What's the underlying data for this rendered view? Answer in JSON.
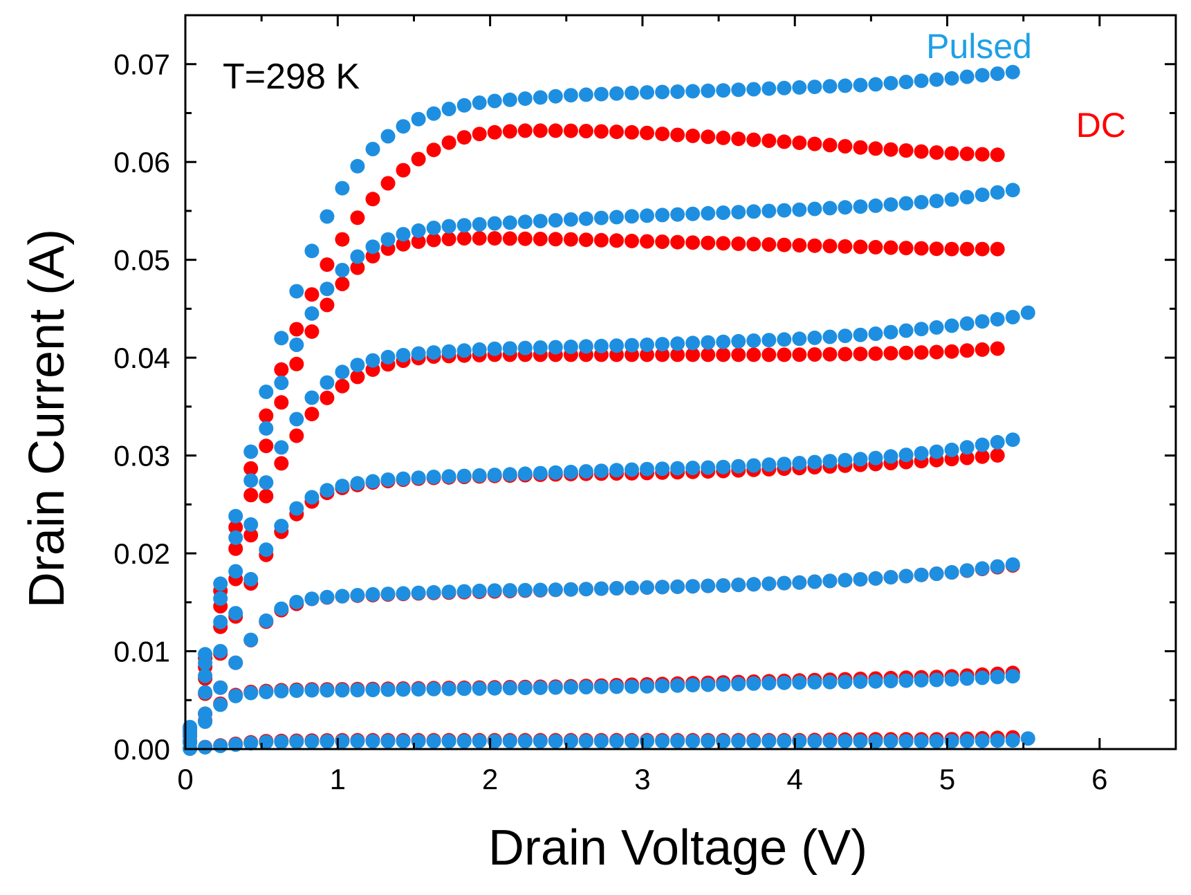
{
  "chart_data": {
    "type": "scatter",
    "title": "",
    "xlabel": "Drain Voltage (V)",
    "ylabel": "Drain Current (A)",
    "xlim": [
      0,
      6.5
    ],
    "ylim": [
      0,
      0.075
    ],
    "x_ticks": [
      0,
      1,
      2,
      3,
      4,
      5,
      6
    ],
    "y_ticks": [
      0.0,
      0.01,
      0.02,
      0.03,
      0.04,
      0.05,
      0.06,
      0.07
    ],
    "x_tick_labels": [
      "0",
      "1",
      "2",
      "3",
      "4",
      "5",
      "6"
    ],
    "y_tick_labels": [
      "0.00",
      "0.01",
      "0.02",
      "0.03",
      "0.04",
      "0.05",
      "0.06",
      "0.07"
    ],
    "grid": false,
    "annotation": "T=298 K",
    "legend_placement": "top-right",
    "series": [
      {
        "name": "Pulsed",
        "color": "#1e8fe0",
        "curves": [
          {
            "x": [
              0.0,
              0.1,
              0.2,
              0.3,
              0.4,
              0.5,
              0.6,
              0.7,
              0.8,
              0.9,
              1.0,
              1.1,
              1.2,
              1.3,
              1.4,
              1.5,
              1.6,
              1.7,
              1.8,
              1.9,
              2.0,
              2.5,
              3.0,
              3.5,
              4.0,
              4.5,
              5.0,
              5.5
            ],
            "y": [
              0.0,
              0.0075,
              0.0148,
              0.0218,
              0.0285,
              0.0348,
              0.0405,
              0.0455,
              0.0498,
              0.0535,
              0.0566,
              0.059,
              0.0609,
              0.0623,
              0.0634,
              0.0642,
              0.0648,
              0.0653,
              0.0657,
              0.066,
              0.0662,
              0.0668,
              0.0671,
              0.0673,
              0.0676,
              0.0679,
              0.0685,
              0.0693
            ]
          },
          {
            "x": [
              0.0,
              0.1,
              0.2,
              0.3,
              0.4,
              0.5,
              0.6,
              0.7,
              0.8,
              0.9,
              1.0,
              1.1,
              1.2,
              1.3,
              1.4,
              1.5,
              1.6,
              1.7,
              1.8,
              1.9,
              2.0,
              2.5,
              3.0,
              3.5,
              4.0,
              4.5,
              5.0,
              5.5
            ],
            "y": [
              0.0,
              0.0068,
              0.0135,
              0.0198,
              0.0258,
              0.0313,
              0.0362,
              0.0403,
              0.0437,
              0.0464,
              0.0485,
              0.05,
              0.0511,
              0.0519,
              0.0525,
              0.0529,
              0.0532,
              0.0534,
              0.0535,
              0.0536,
              0.0537,
              0.0541,
              0.0545,
              0.0548,
              0.0551,
              0.0555,
              0.0561,
              0.0573
            ]
          },
          {
            "x": [
              0.0,
              0.1,
              0.2,
              0.3,
              0.4,
              0.5,
              0.6,
              0.7,
              0.8,
              0.9,
              1.0,
              1.1,
              1.2,
              1.3,
              1.4,
              1.5,
              1.6,
              1.7,
              1.8,
              1.9,
              2.0,
              2.5,
              3.0,
              3.5,
              4.0,
              4.5,
              5.0,
              5.5,
              5.55
            ],
            "y": [
              0.0,
              0.0058,
              0.0114,
              0.0167,
              0.0216,
              0.0261,
              0.0299,
              0.033,
              0.0354,
              0.0371,
              0.0383,
              0.0391,
              0.0396,
              0.04,
              0.0402,
              0.0404,
              0.0405,
              0.0406,
              0.0407,
              0.0408,
              0.0409,
              0.0411,
              0.0413,
              0.0416,
              0.0419,
              0.0424,
              0.0432,
              0.0443,
              0.0448
            ]
          },
          {
            "x": [
              0.0,
              0.1,
              0.2,
              0.3,
              0.4,
              0.5,
              0.6,
              0.7,
              0.8,
              0.9,
              1.0,
              1.1,
              1.2,
              1.3,
              1.4,
              1.5,
              1.6,
              1.8,
              2.0,
              2.5,
              3.0,
              3.5,
              4.0,
              4.5,
              5.0,
              5.5
            ],
            "y": [
              0.0,
              0.0045,
              0.0088,
              0.0128,
              0.0164,
              0.0196,
              0.0222,
              0.0242,
              0.0255,
              0.0263,
              0.0268,
              0.0271,
              0.0273,
              0.0275,
              0.0276,
              0.0277,
              0.0278,
              0.0279,
              0.028,
              0.0283,
              0.0286,
              0.0288,
              0.0292,
              0.0297,
              0.0305,
              0.0318
            ]
          },
          {
            "x": [
              0.0,
              0.1,
              0.2,
              0.3,
              0.4,
              0.5,
              0.6,
              0.7,
              0.8,
              0.9,
              1.0,
              1.2,
              1.4,
              1.6,
              1.8,
              2.0,
              2.5,
              3.0,
              3.5,
              4.0,
              4.5,
              5.0,
              5.5
            ],
            "y": [
              0.0,
              0.0028,
              0.0055,
              0.0081,
              0.0105,
              0.0127,
              0.0141,
              0.0149,
              0.0153,
              0.0155,
              0.0156,
              0.0158,
              0.0159,
              0.016,
              0.0161,
              0.0162,
              0.0163,
              0.0165,
              0.0167,
              0.017,
              0.0174,
              0.018,
              0.019
            ]
          },
          {
            "x": [
              0.0,
              0.1,
              0.2,
              0.3,
              0.4,
              0.5,
              0.6,
              0.8,
              1.0,
              1.5,
              2.0,
              2.5,
              3.0,
              3.5,
              4.0,
              4.5,
              5.0,
              5.5
            ],
            "y": [
              0.0,
              0.0022,
              0.0042,
              0.0053,
              0.0057,
              0.0058,
              0.0059,
              0.006,
              0.006,
              0.0061,
              0.0062,
              0.0063,
              0.0064,
              0.0066,
              0.0068,
              0.0069,
              0.0071,
              0.0075
            ]
          },
          {
            "x": [
              0.0,
              0.5,
              1.0,
              1.5,
              2.0,
              2.5,
              3.0,
              3.5,
              4.0,
              4.5,
              5.0,
              5.5,
              5.55,
              5.6
            ],
            "y": [
              0.0,
              0.0007,
              0.0008,
              0.0008,
              0.0008,
              0.0008,
              0.0008,
              0.0008,
              0.0008,
              0.0008,
              0.0008,
              0.0009,
              0.0012,
              0.0004
            ]
          }
        ]
      },
      {
        "name": "DC",
        "color": "#ff0000",
        "curves": [
          {
            "x": [
              0.0,
              0.1,
              0.2,
              0.3,
              0.4,
              0.5,
              0.6,
              0.7,
              0.8,
              0.9,
              1.0,
              1.1,
              1.2,
              1.3,
              1.4,
              1.5,
              1.6,
              1.7,
              1.8,
              1.9,
              2.0,
              2.2,
              2.5,
              2.8,
              3.0,
              3.5,
              4.0,
              4.5,
              5.0,
              5.4
            ],
            "y": [
              0.0,
              0.0072,
              0.0142,
              0.0208,
              0.027,
              0.0326,
              0.0375,
              0.0418,
              0.0455,
              0.0487,
              0.0514,
              0.0537,
              0.0557,
              0.0574,
              0.0588,
              0.06,
              0.061,
              0.0618,
              0.0624,
              0.0628,
              0.063,
              0.0632,
              0.0632,
              0.0631,
              0.063,
              0.0625,
              0.062,
              0.0614,
              0.0609,
              0.0607
            ]
          },
          {
            "x": [
              0.0,
              0.1,
              0.2,
              0.3,
              0.4,
              0.5,
              0.6,
              0.7,
              0.8,
              0.9,
              1.0,
              1.1,
              1.2,
              1.3,
              1.4,
              1.5,
              1.6,
              1.7,
              1.8,
              1.9,
              2.0,
              2.5,
              3.0,
              3.5,
              4.0,
              4.5,
              5.0,
              5.4
            ],
            "y": [
              0.0,
              0.0065,
              0.0128,
              0.0188,
              0.0244,
              0.0296,
              0.0342,
              0.0383,
              0.0418,
              0.0447,
              0.047,
              0.0488,
              0.0501,
              0.051,
              0.0515,
              0.0518,
              0.052,
              0.0521,
              0.0522,
              0.0522,
              0.0522,
              0.0521,
              0.0519,
              0.0517,
              0.0515,
              0.0513,
              0.0511,
              0.0511
            ]
          },
          {
            "x": [
              0.0,
              0.1,
              0.2,
              0.3,
              0.4,
              0.5,
              0.6,
              0.7,
              0.8,
              0.9,
              1.0,
              1.1,
              1.2,
              1.3,
              1.4,
              1.5,
              1.6,
              1.8,
              2.0,
              2.5,
              3.0,
              3.5,
              4.0,
              4.5,
              5.0,
              5.4
            ],
            "y": [
              0.0,
              0.0056,
              0.011,
              0.016,
              0.0206,
              0.0248,
              0.0283,
              0.0313,
              0.0337,
              0.0355,
              0.0368,
              0.0378,
              0.0386,
              0.0392,
              0.0396,
              0.0399,
              0.0401,
              0.0402,
              0.0403,
              0.0403,
              0.0403,
              0.0403,
              0.0403,
              0.0404,
              0.0406,
              0.041
            ]
          },
          {
            "x": [
              0.0,
              0.1,
              0.2,
              0.3,
              0.4,
              0.5,
              0.6,
              0.7,
              0.8,
              0.9,
              1.0,
              1.2,
              1.4,
              1.6,
              1.8,
              2.0,
              2.5,
              3.0,
              3.5,
              4.0,
              4.5,
              5.0,
              5.4
            ],
            "y": [
              0.0,
              0.0044,
              0.0086,
              0.0125,
              0.016,
              0.0191,
              0.0216,
              0.0236,
              0.025,
              0.026,
              0.0266,
              0.0272,
              0.0275,
              0.0277,
              0.0278,
              0.0279,
              0.0281,
              0.0282,
              0.0284,
              0.0287,
              0.0291,
              0.0296,
              0.0301
            ]
          },
          {
            "x": [
              0.0,
              0.1,
              0.2,
              0.3,
              0.4,
              0.5,
              0.6,
              0.8,
              1.0,
              1.5,
              2.0,
              2.5,
              3.0,
              3.5,
              4.0,
              4.5,
              5.0,
              5.45
            ],
            "y": [
              0.0,
              0.0028,
              0.0055,
              0.0081,
              0.0105,
              0.0126,
              0.014,
              0.0153,
              0.0156,
              0.0159,
              0.0161,
              0.0163,
              0.0165,
              0.0167,
              0.017,
              0.0174,
              0.018,
              0.0188
            ]
          },
          {
            "x": [
              0.0,
              0.1,
              0.2,
              0.3,
              0.4,
              0.6,
              0.8,
              1.0,
              1.5,
              2.0,
              2.5,
              3.0,
              3.5,
              4.0,
              4.5,
              5.0,
              5.45
            ],
            "y": [
              0.0,
              0.0023,
              0.0043,
              0.0054,
              0.0058,
              0.006,
              0.0061,
              0.0061,
              0.0062,
              0.0063,
              0.0064,
              0.0066,
              0.0068,
              0.007,
              0.0072,
              0.0074,
              0.0078
            ]
          },
          {
            "x": [
              0.0,
              0.5,
              1.0,
              1.5,
              2.0,
              2.5,
              3.0,
              3.5,
              4.0,
              4.5,
              5.0,
              5.45
            ],
            "y": [
              0.0,
              0.0008,
              0.0009,
              0.0009,
              0.0009,
              0.0009,
              0.0009,
              0.0009,
              0.0009,
              0.001,
              0.001,
              0.0012
            ]
          }
        ]
      }
    ]
  }
}
